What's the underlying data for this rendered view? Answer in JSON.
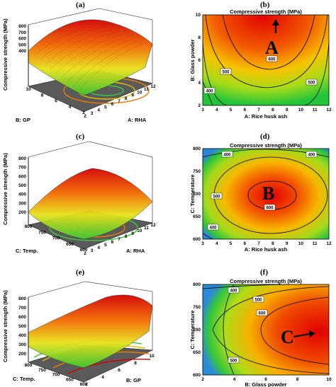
{
  "panel_labels": [
    "(a)",
    "(b)",
    "(c)",
    "(d)",
    "(e)",
    "(f)"
  ],
  "big_letters": [
    "A",
    "B",
    "C"
  ],
  "chart_data": [
    {
      "panel": "(a)",
      "type": "surface",
      "zlabel": "Compressive strength (MPa)",
      "xlabel": "A: RHA",
      "ylabel": "B: GP",
      "zticks": [
        "800",
        "700",
        "600",
        "500",
        "400"
      ],
      "xticks": [
        "2",
        "3",
        "4",
        "5",
        "6",
        "7",
        "8",
        "9",
        "10",
        "11",
        "12"
      ],
      "yticks": [
        "2",
        "4",
        "6",
        "8",
        "10"
      ]
    },
    {
      "panel": "(b)",
      "type": "contour",
      "title": "Compressive strength (MPa)",
      "xlabel": "A: Rice husk ash",
      "ylabel": "B: Glass powder",
      "xticks": [
        "3",
        "4",
        "5",
        "6",
        "7",
        "8",
        "9",
        "10",
        "11",
        "12"
      ],
      "yticks": [
        "2",
        "4",
        "6",
        "8",
        "10"
      ],
      "xlim": [
        3,
        12
      ],
      "ylim": [
        2,
        10
      ],
      "contour_labels": [
        "600",
        "500",
        "500",
        "400"
      ]
    },
    {
      "panel": "(c)",
      "type": "surface",
      "zlabel": "Compressive strength (MPa)",
      "xlabel": "A: RHA",
      "ylabel": "C: Temp.",
      "zticks": [
        "800",
        "700",
        "600",
        "500",
        "400",
        "300",
        "200"
      ],
      "xticks": [
        "2",
        "3",
        "4",
        "5",
        "6",
        "7",
        "8",
        "9",
        "10",
        "11",
        "12"
      ],
      "yticks": [
        "600",
        "650",
        "700",
        "750",
        "800"
      ]
    },
    {
      "panel": "(d)",
      "type": "contour",
      "title": "Compressive strength (MPa)",
      "xlabel": "A: Rice husk ash",
      "ylabel": "C: Temperature",
      "xticks": [
        "3",
        "4",
        "5",
        "6",
        "7",
        "8",
        "9",
        "10",
        "11",
        "12"
      ],
      "yticks": [
        "600",
        "650",
        "700",
        "750",
        "800"
      ],
      "xlim": [
        3,
        12
      ],
      "ylim": [
        600,
        800
      ],
      "contour_labels": [
        "400",
        "400",
        "500",
        "600",
        "400"
      ]
    },
    {
      "panel": "(e)",
      "type": "surface",
      "zlabel": "Compressive strength (MPa)",
      "xlabel": "B: GP",
      "ylabel": "C: Temp.",
      "zticks": [
        "800",
        "700",
        "600",
        "500",
        "400",
        "300",
        "200"
      ],
      "xticks": [
        "2",
        "4",
        "6",
        "8",
        "10"
      ],
      "yticks": [
        "600",
        "650",
        "700",
        "750",
        "800"
      ]
    },
    {
      "panel": "(f)",
      "type": "contour",
      "title": "Compressive strength (MPa)",
      "xlabel": "B: Glass powder",
      "ylabel": "C: Temperature",
      "xticks": [
        "2",
        "4",
        "6",
        "8",
        "10"
      ],
      "yticks": [
        "600",
        "650",
        "700",
        "750",
        "800"
      ],
      "xlim": [
        2,
        10
      ],
      "ylim": [
        600,
        800
      ],
      "contour_labels": [
        "400",
        "500",
        "600",
        "500"
      ]
    }
  ]
}
